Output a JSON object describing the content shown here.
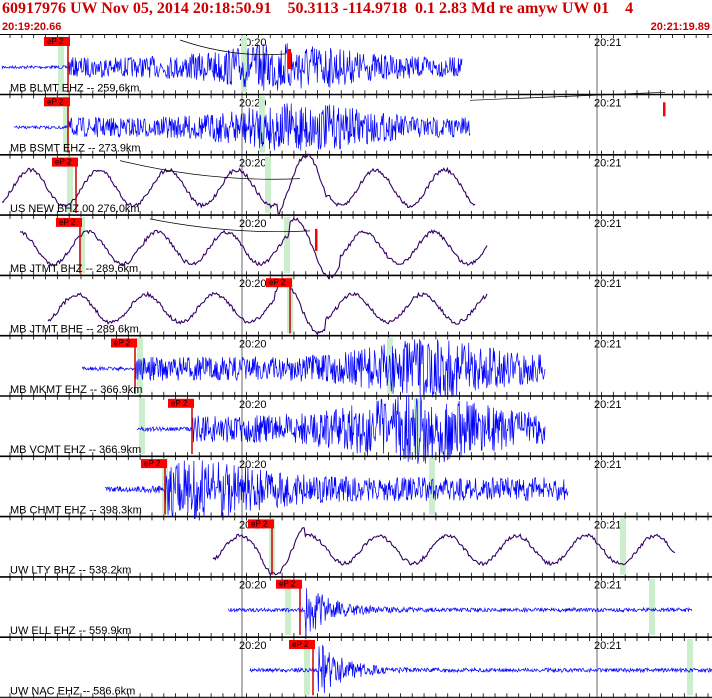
{
  "header": {
    "title": "60917976 UW Nov 05, 2014 20:18:50.91    50.3113 -114.9718  0.1 2.83 Md re amyw UW 01    4",
    "start_time": "20:19:20.66",
    "end_time": "20:21:19.89"
  },
  "colors": {
    "title": "#cc0000",
    "trace_high_freq": "#0000ff",
    "trace_low_freq": "#330066",
    "pick_box": "#ff0000",
    "pick_line": "#cc0000",
    "theoretical_arrival": "#cceecc",
    "grid": "#000000"
  },
  "time_labels": [
    "20:20",
    "20:21"
  ],
  "pick_label": "eP 2",
  "traces": [
    {
      "label": "MB BLMT EHZ -- 259.6km",
      "type": "hf"
    },
    {
      "label": "MB BSMT EHZ -- 273.9km",
      "type": "hf"
    },
    {
      "label": "US NEW BHZ 00 276.0km",
      "type": "lf"
    },
    {
      "label": "MB JTMT BHZ -- 289.6km",
      "type": "lf"
    },
    {
      "label": "MB JTMT BHE -- 289.6km",
      "type": "lf"
    },
    {
      "label": "MB MKMT EHZ -- 366.9km",
      "type": "hf"
    },
    {
      "label": "MB VCMT EHZ -- 366.9km",
      "type": "hf"
    },
    {
      "label": "MB CHMT EHZ -- 398.3km",
      "type": "hf"
    },
    {
      "label": "UW LTY BHZ -- 538.2km",
      "type": "lf"
    },
    {
      "label": "UW ELL EHZ -- 559.9km",
      "type": "burst"
    },
    {
      "label": "UW NAC EHZ -- 586.6km",
      "type": "burst"
    }
  ]
}
